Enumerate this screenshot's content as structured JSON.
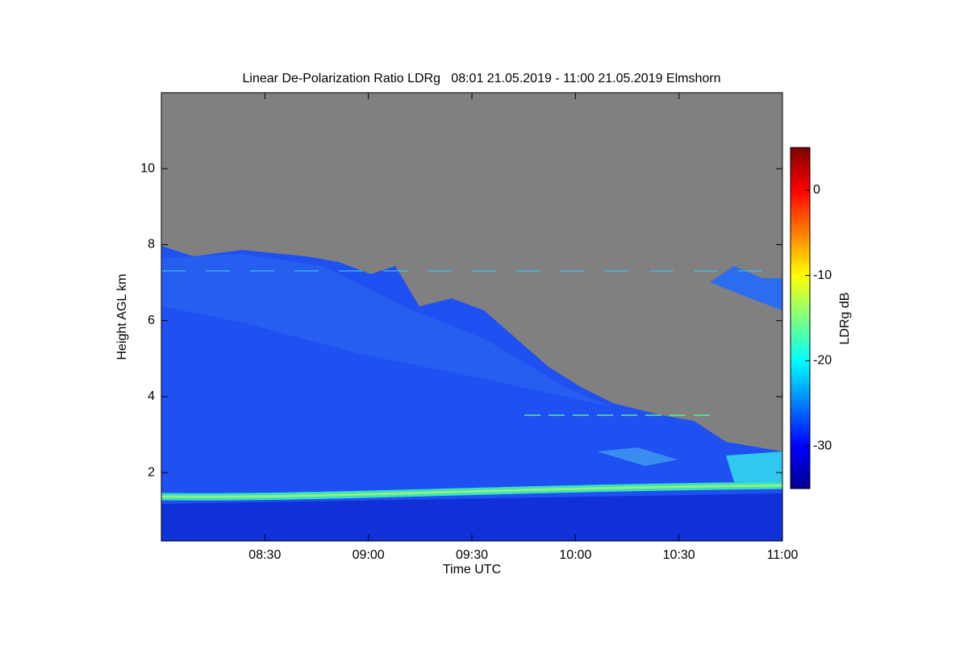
{
  "chart_data": {
    "type": "heatmap",
    "title": "Linear De-Polarization Ratio LDRg   08:01 21.05.2019 - 11:00 21.05.2019 Elmshorn",
    "xlabel": "Time UTC",
    "ylabel": "Height AGL km",
    "xlim": [
      480,
      660
    ],
    "xticks": [
      {
        "value": 510,
        "label": "08:30"
      },
      {
        "value": 540,
        "label": "09:00"
      },
      {
        "value": 570,
        "label": "09:30"
      },
      {
        "value": 600,
        "label": "10:00"
      },
      {
        "value": 630,
        "label": "10:30"
      },
      {
        "value": 660,
        "label": "11:00"
      }
    ],
    "ylim": [
      0.2,
      12
    ],
    "yticks": [
      2,
      4,
      6,
      8,
      10
    ],
    "colorbar": {
      "label": "LDRg dB",
      "lim": [
        -35,
        5
      ],
      "ticks": [
        0,
        -10,
        -20,
        -30
      ],
      "colormap": "jet"
    }
  }
}
